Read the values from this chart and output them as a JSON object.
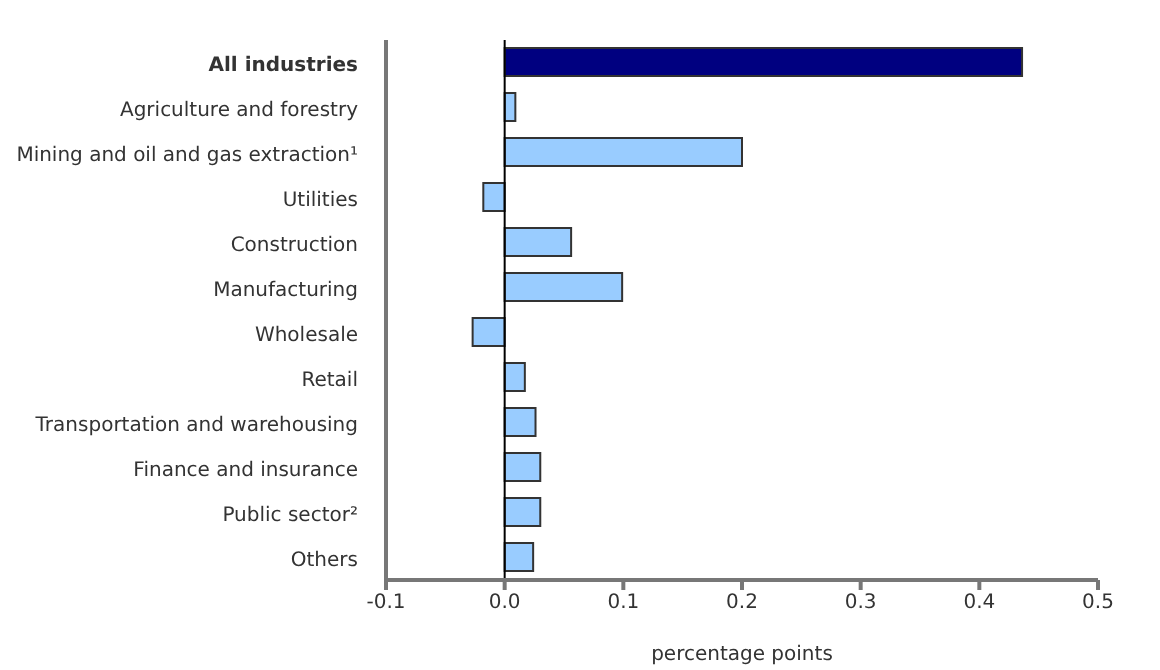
{
  "chart_data": {
    "type": "bar",
    "orientation": "horizontal",
    "xlabel": "percentage points",
    "categories": [
      "All industries",
      "Agriculture and forestry",
      "Mining and oil and gas extraction¹",
      "Utilities",
      "Construction",
      "Manufacturing",
      "Wholesale",
      "Retail",
      "Transportation and warehousing",
      "Finance and insurance",
      "Public sector²",
      "Others"
    ],
    "values": [
      0.436,
      0.009,
      0.2,
      -0.018,
      0.056,
      0.099,
      -0.027,
      0.017,
      0.026,
      0.03,
      0.03,
      0.024
    ],
    "colors": [
      "#000080",
      "#99ccff",
      "#99ccff",
      "#99ccff",
      "#99ccff",
      "#99ccff",
      "#99ccff",
      "#99ccff",
      "#99ccff",
      "#99ccff",
      "#99ccff",
      "#99ccff"
    ],
    "xlim": [
      -0.1,
      0.5
    ],
    "xticks": [
      {
        "value": -0.1,
        "label": "-0.1"
      },
      {
        "value": 0,
        "label": "0.0"
      },
      {
        "value": 0.1,
        "label": "0.1"
      },
      {
        "value": 0.2,
        "label": "0.2"
      },
      {
        "value": 0.3,
        "label": "0.3"
      },
      {
        "value": 0.4,
        "label": "0.4"
      },
      {
        "value": 0.5,
        "label": "0.5"
      }
    ]
  }
}
